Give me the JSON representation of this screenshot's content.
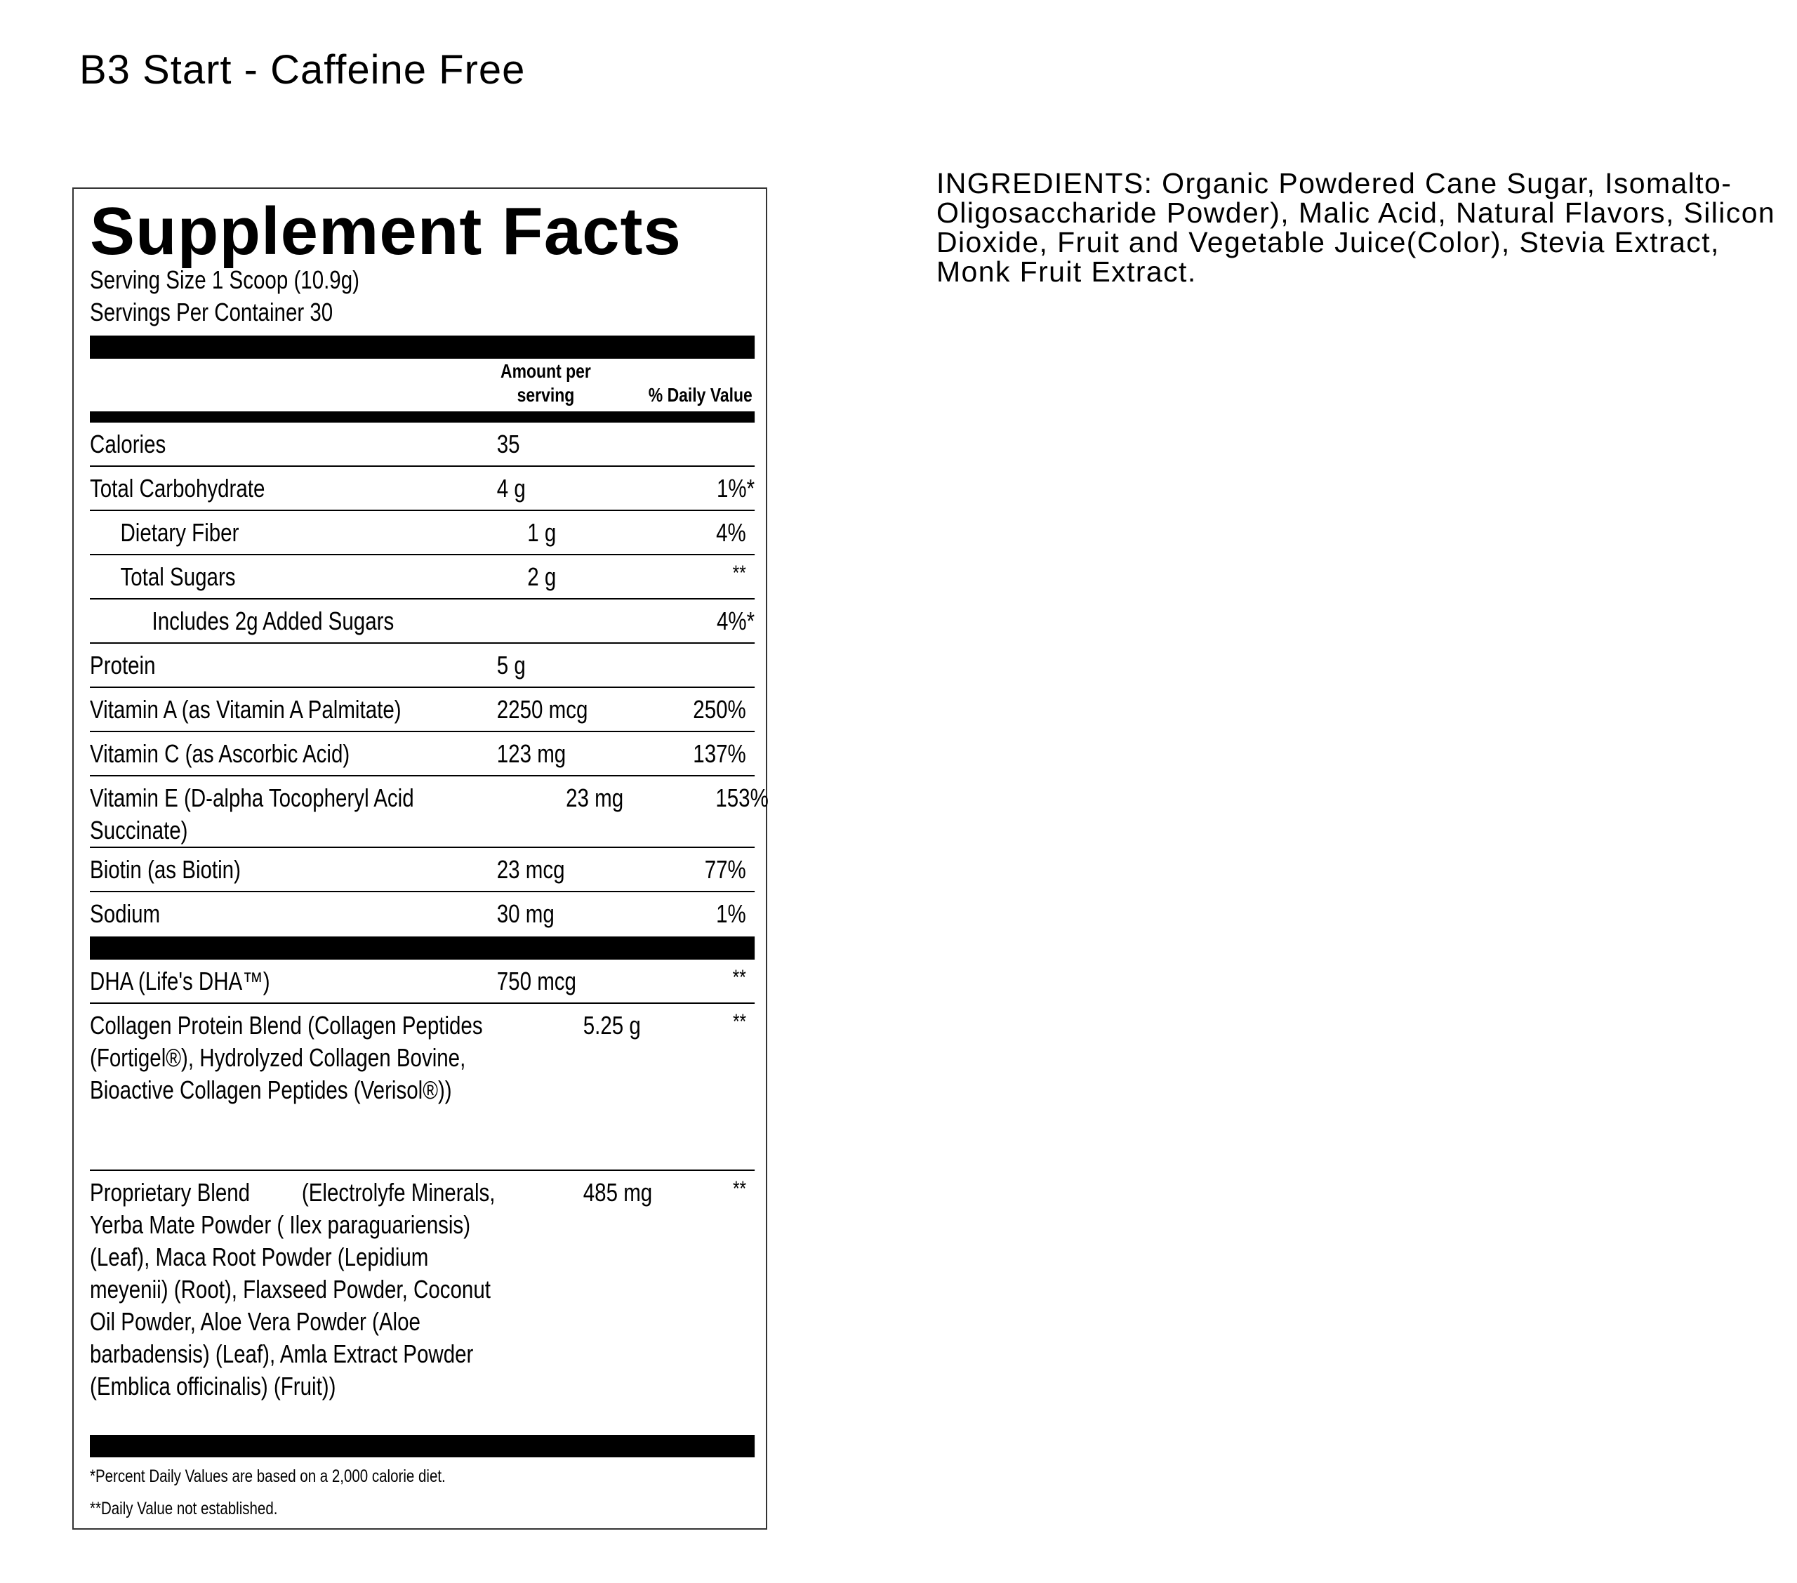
{
  "product_title": "B3 Start - Caffeine Free",
  "ingredients": "INGREDIENTS: Organic Powdered Cane Sugar, Isomalto-Oligosaccharide Powder), Malic Acid, Natural Flavors, Silicon Dioxide, Fruit and Vegetable Juice(Color), Stevia Extract, Monk Fruit Extract.",
  "facts": {
    "heading": "Supplement Facts",
    "serving_size": "Serving Size 1 Scoop (10.9g)",
    "servings_per_container": "Servings Per Container 30",
    "col_amount_line1": "Amount per",
    "col_amount_line2": "serving",
    "col_dv": "% Daily Value",
    "rows": [
      {
        "name": "Calories",
        "amount": "35",
        "dv": ""
      },
      {
        "name": "Total Carbohydrate",
        "amount": "4 g",
        "dv": "1%*"
      },
      {
        "name": "Dietary Fiber",
        "amount": "1 g",
        "dv": "4%"
      },
      {
        "name": "Total Sugars",
        "amount": "2 g",
        "dv": "**"
      },
      {
        "name": "Includes 2g Added Sugars",
        "amount": "",
        "dv": "4%*"
      },
      {
        "name": "Protein",
        "amount": "5 g",
        "dv": ""
      },
      {
        "name": "Vitamin A (as Vitamin A Palmitate)",
        "amount": "2250 mcg",
        "dv": "250%"
      },
      {
        "name": "Vitamin C (as Ascorbic Acid)",
        "amount": "123 mg",
        "dv": "137%"
      },
      {
        "name": "Vitamin E (D-alpha Tocopheryl Acid Succinate)",
        "amount": "23 mg",
        "dv": "153%"
      },
      {
        "name": "Biotin (as Biotin)",
        "amount": "23 mcg",
        "dv": "77%"
      },
      {
        "name": "Sodium",
        "amount": "30 mg",
        "dv": "1%"
      }
    ],
    "other_rows": [
      {
        "name": "DHA (Life's DHA™)",
        "amount": "750 mcg",
        "dv": "**"
      },
      {
        "name": "Collagen Protein Blend (Collagen Peptides (Fortigel®), Hydrolyzed Collagen Bovine, Bioactive Collagen Peptides (Verisol®))",
        "amount": "5.25 g",
        "dv": "**"
      },
      {
        "name": "Proprietary Blend         (Electrolyfe Minerals, Yerba Mate Powder ( Ilex paraguariensis) (Leaf), Maca Root Powder (Lepidium meyenii) (Root), Flaxseed Powder, Coconut Oil Powder, Aloe Vera Powder (Aloe barbadensis) (Leaf), Amla Extract Powder (Emblica officinalis) (Fruit))",
        "amount": "485 mg",
        "dv": "**"
      }
    ],
    "footnote1": "*Percent Daily Values are based on a 2,000 calorie diet.",
    "footnote2": "**Daily Value not established."
  }
}
